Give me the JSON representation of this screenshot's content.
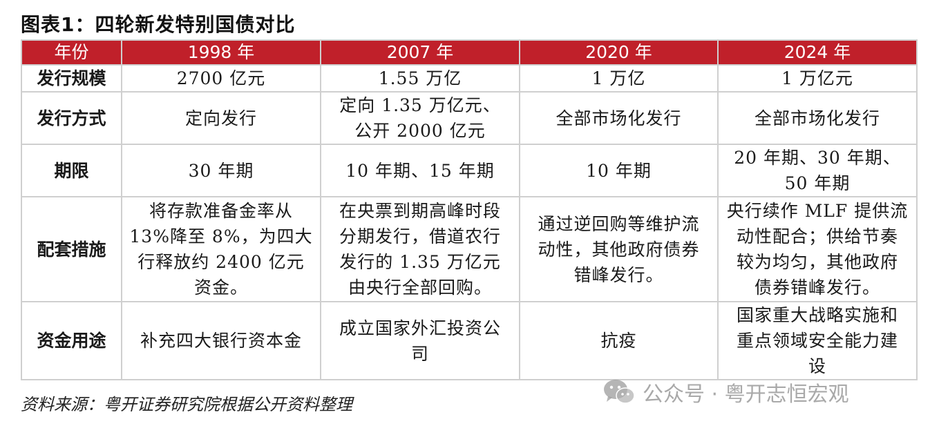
{
  "title": "图表1：四轮新发特别国债对比",
  "header": {
    "label": "年份",
    "years": [
      "1998 年",
      "2007 年",
      "2020 年",
      "2024 年"
    ]
  },
  "rows": [
    {
      "label": "发行规模",
      "cells": [
        "2700 亿元",
        "1.55 万亿",
        "1 万亿",
        "1 万亿元"
      ]
    },
    {
      "label": "发行方式",
      "cells": [
        "定向发行",
        "定向 1.35 万亿元、\n公开 2000 亿元",
        "全部市场化发行",
        "全部市场化发行"
      ]
    },
    {
      "label": "期限",
      "cells": [
        "30 年期",
        "10 年期、15 年期",
        "10 年期",
        "20 年期、30 年期、\n50 年期"
      ]
    },
    {
      "label": "配套措施",
      "cells": [
        "将存款准备金率从\n13%降至 8%，为四大\n行释放约 2400 亿元\n资金。",
        "在央票到期高峰时段\n分期发行，借道农行\n发行的 1.35 万亿元\n由央行全部回购。",
        "通过逆回购等维护流\n动性，其他政府债券\n错峰发行。",
        "央行续作 MLF 提供流\n动性配合；供给节奏\n较为均匀，其他政府\n债券错峰发行。"
      ]
    },
    {
      "label": "资金用途",
      "cells": [
        "补充四大银行资本金",
        "成立国家外汇投资公\n司",
        "抗疫",
        "国家重大战略实施和\n重点领域安全能力建\n设"
      ]
    }
  ],
  "source": "资料来源：粤开证券研究院根据公开资料整理",
  "watermark": {
    "icon": "wechat-icon",
    "text": "公众号 · 粤开志恒宏观"
  },
  "colors": {
    "header_bg": "#c0202a",
    "header_text": "#ffffff",
    "grid": "#cfcfcf"
  }
}
